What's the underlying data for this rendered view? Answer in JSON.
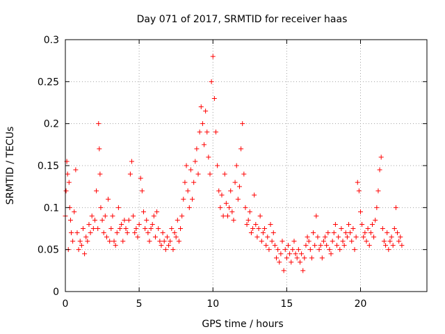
{
  "chart_data": {
    "type": "scatter",
    "title": "Day 071 of 2017, SRMTID for receiver haas",
    "xlabel": "GPS time / hours",
    "ylabel": "SRMTID / TECUs",
    "xlim": [
      0,
      24.5
    ],
    "ylim": [
      0,
      0.3
    ],
    "xticks": [
      0,
      5,
      10,
      15,
      20
    ],
    "xtick_labels": [
      "0",
      "5",
      "10",
      "15",
      "20"
    ],
    "yticks": [
      0,
      0.05,
      0.1,
      0.15,
      0.2,
      0.25,
      0.3
    ],
    "ytick_labels": [
      "0",
      "0.05",
      "0.1",
      "0.15",
      "0.2",
      "0.25",
      "0.3"
    ],
    "grid": true,
    "marker": "+",
    "color": "#ff0000",
    "series": [
      {
        "name": "SRMTID",
        "x": [
          0.0,
          0.05,
          0.1,
          0.15,
          0.2,
          0.25,
          0.3,
          0.35,
          0.4,
          0.5,
          0.6,
          0.7,
          0.8,
          0.9,
          1.0,
          1.1,
          1.2,
          1.3,
          1.4,
          1.5,
          1.6,
          1.7,
          1.8,
          1.9,
          2.0,
          2.1,
          2.2,
          2.25,
          2.3,
          2.35,
          2.4,
          2.5,
          2.6,
          2.7,
          2.8,
          2.9,
          3.0,
          3.1,
          3.2,
          3.3,
          3.4,
          3.5,
          3.6,
          3.7,
          3.8,
          3.9,
          4.0,
          4.1,
          4.2,
          4.3,
          4.4,
          4.5,
          4.6,
          4.7,
          4.8,
          4.9,
          5.0,
          5.1,
          5.2,
          5.3,
          5.4,
          5.5,
          5.6,
          5.7,
          5.8,
          5.9,
          6.0,
          6.1,
          6.2,
          6.3,
          6.4,
          6.5,
          6.6,
          6.7,
          6.8,
          6.9,
          7.0,
          7.1,
          7.2,
          7.3,
          7.4,
          7.5,
          7.6,
          7.7,
          7.8,
          7.9,
          8.0,
          8.1,
          8.2,
          8.3,
          8.4,
          8.5,
          8.6,
          8.7,
          8.8,
          8.9,
          9.0,
          9.1,
          9.2,
          9.3,
          9.4,
          9.5,
          9.6,
          9.7,
          9.8,
          9.9,
          10.0,
          10.1,
          10.2,
          10.3,
          10.4,
          10.5,
          10.6,
          10.7,
          10.8,
          10.9,
          11.0,
          11.1,
          11.2,
          11.3,
          11.4,
          11.5,
          11.6,
          11.7,
          11.8,
          11.9,
          12.0,
          12.1,
          12.2,
          12.3,
          12.4,
          12.5,
          12.6,
          12.7,
          12.8,
          12.9,
          13.0,
          13.1,
          13.2,
          13.3,
          13.4,
          13.5,
          13.6,
          13.7,
          13.8,
          13.9,
          14.0,
          14.1,
          14.2,
          14.3,
          14.4,
          14.5,
          14.6,
          14.7,
          14.8,
          14.9,
          15.0,
          15.1,
          15.2,
          15.3,
          15.4,
          15.5,
          15.6,
          15.7,
          15.8,
          15.9,
          16.0,
          16.1,
          16.2,
          16.3,
          16.4,
          16.5,
          16.6,
          16.7,
          16.8,
          16.9,
          17.0,
          17.1,
          17.2,
          17.3,
          17.4,
          17.5,
          17.6,
          17.7,
          17.8,
          17.9,
          18.0,
          18.1,
          18.2,
          18.3,
          18.4,
          18.5,
          18.6,
          18.7,
          18.8,
          18.9,
          19.0,
          19.1,
          19.2,
          19.3,
          19.4,
          19.5,
          19.6,
          19.7,
          19.8,
          19.9,
          20.0,
          20.1,
          20.2,
          20.3,
          20.4,
          20.5,
          20.6,
          20.7,
          20.8,
          20.9,
          21.0,
          21.1,
          21.2,
          21.3,
          21.4,
          21.5,
          21.6,
          21.7,
          21.8,
          21.9,
          22.0,
          22.1,
          22.2,
          22.3,
          22.4,
          22.5,
          22.6,
          22.7,
          22.8
        ],
        "y": [
          0.09,
          0.12,
          0.155,
          0.14,
          0.05,
          0.13,
          0.1,
          0.085,
          0.07,
          0.06,
          0.095,
          0.145,
          0.07,
          0.05,
          0.06,
          0.055,
          0.075,
          0.045,
          0.065,
          0.06,
          0.08,
          0.07,
          0.09,
          0.075,
          0.085,
          0.12,
          0.075,
          0.2,
          0.17,
          0.14,
          0.1,
          0.085,
          0.07,
          0.09,
          0.065,
          0.11,
          0.06,
          0.075,
          0.09,
          0.06,
          0.055,
          0.07,
          0.1,
          0.075,
          0.08,
          0.06,
          0.085,
          0.075,
          0.07,
          0.085,
          0.14,
          0.155,
          0.09,
          0.07,
          0.075,
          0.065,
          0.08,
          0.135,
          0.12,
          0.095,
          0.075,
          0.085,
          0.07,
          0.06,
          0.075,
          0.08,
          0.09,
          0.065,
          0.095,
          0.075,
          0.06,
          0.055,
          0.07,
          0.06,
          0.05,
          0.065,
          0.055,
          0.06,
          0.075,
          0.05,
          0.07,
          0.065,
          0.085,
          0.06,
          0.075,
          0.09,
          0.11,
          0.13,
          0.15,
          0.12,
          0.1,
          0.145,
          0.11,
          0.13,
          0.155,
          0.17,
          0.14,
          0.19,
          0.22,
          0.2,
          0.175,
          0.215,
          0.19,
          0.16,
          0.14,
          0.25,
          0.28,
          0.23,
          0.19,
          0.15,
          0.12,
          0.1,
          0.115,
          0.09,
          0.14,
          0.105,
          0.09,
          0.1,
          0.12,
          0.095,
          0.085,
          0.13,
          0.15,
          0.11,
          0.125,
          0.17,
          0.2,
          0.14,
          0.1,
          0.08,
          0.085,
          0.095,
          0.07,
          0.075,
          0.115,
          0.08,
          0.065,
          0.075,
          0.09,
          0.06,
          0.07,
          0.075,
          0.055,
          0.065,
          0.05,
          0.08,
          0.06,
          0.07,
          0.055,
          0.04,
          0.05,
          0.035,
          0.045,
          0.06,
          0.025,
          0.05,
          0.04,
          0.055,
          0.045,
          0.035,
          0.05,
          0.06,
          0.045,
          0.04,
          0.05,
          0.035,
          0.045,
          0.025,
          0.04,
          0.055,
          0.065,
          0.06,
          0.05,
          0.04,
          0.07,
          0.055,
          0.09,
          0.065,
          0.05,
          0.055,
          0.04,
          0.06,
          0.065,
          0.055,
          0.07,
          0.05,
          0.045,
          0.06,
          0.07,
          0.08,
          0.055,
          0.065,
          0.05,
          0.075,
          0.06,
          0.055,
          0.07,
          0.065,
          0.08,
          0.07,
          0.06,
          0.075,
          0.05,
          0.065,
          0.13,
          0.12,
          0.095,
          0.08,
          0.065,
          0.07,
          0.06,
          0.075,
          0.055,
          0.07,
          0.08,
          0.065,
          0.085,
          0.1,
          0.12,
          0.145,
          0.16,
          0.075,
          0.06,
          0.055,
          0.07,
          0.05,
          0.06,
          0.065,
          0.055,
          0.075,
          0.1,
          0.07,
          0.06,
          0.065,
          0.055
        ]
      }
    ]
  }
}
